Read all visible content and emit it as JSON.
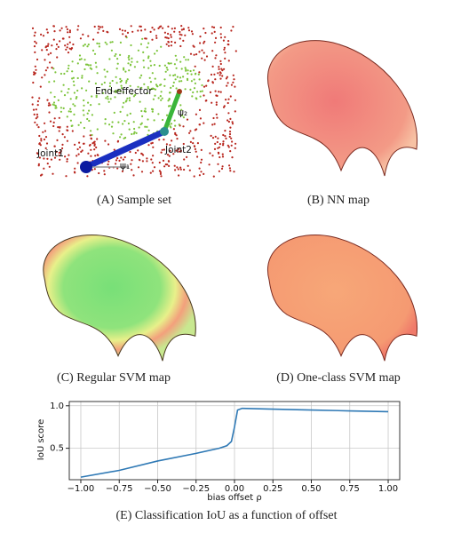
{
  "figure": {
    "captions": [
      "(A) Sample set",
      "(B) NN map",
      "(C) Regular SVM map",
      "(D) One-class SVM map",
      "(E) Classification IoU as a function of offset"
    ],
    "sample_set": {
      "end_effector": "End-effector",
      "joint1": "Joint1",
      "joint2": "Joint2",
      "psi1": "ψ₁",
      "psi2": "ψ₂"
    }
  },
  "chart_data": {
    "type": "line",
    "x_label": "bias offset ρ",
    "y_label": "IoU score",
    "x": [
      -1,
      -0.75,
      -0.5,
      -0.25,
      -0.1,
      -0.05,
      -0.02,
      0,
      0.02,
      0.05,
      0.25,
      0.5,
      0.75,
      1
    ],
    "values": [
      0.16,
      0.24,
      0.35,
      0.44,
      0.5,
      0.53,
      0.58,
      0.75,
      0.95,
      0.97,
      0.96,
      0.95,
      0.94,
      0.93
    ],
    "color": "#2f79b5",
    "xlim": [
      -1.075,
      1.075
    ],
    "ylim": [
      0.13,
      1.05
    ],
    "xticks": [
      {
        "value": -1,
        "label": "−1.00"
      },
      {
        "value": -0.75,
        "label": "−0.75"
      },
      {
        "value": -0.5,
        "label": "−0.50"
      },
      {
        "value": -0.25,
        "label": "−0.25"
      },
      {
        "value": 0,
        "label": "0.00"
      },
      {
        "value": 0.25,
        "label": "0.25"
      },
      {
        "value": 0.5,
        "label": "0.50"
      },
      {
        "value": 0.75,
        "label": "0.75"
      },
      {
        "value": 1,
        "label": "1.00"
      }
    ],
    "yticks": [
      0.5,
      {
        "value": 1,
        "label": "1.0"
      }
    ],
    "grid": true
  }
}
